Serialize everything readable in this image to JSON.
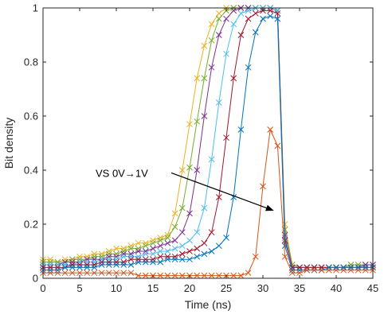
{
  "chart_data": {
    "type": "line",
    "xlabel": "Time (ns)",
    "ylabel": "Bit density",
    "xlim": [
      0,
      45
    ],
    "ylim": [
      0,
      1
    ],
    "xticks": [
      0,
      5,
      10,
      15,
      20,
      25,
      30,
      35,
      40,
      45
    ],
    "yticks": [
      0,
      0.2,
      0.4,
      0.6,
      0.8,
      1
    ],
    "xtick_labels": [
      "0",
      "5",
      "10",
      "15",
      "20",
      "25",
      "30",
      "35",
      "40",
      "45"
    ],
    "ytick_labels": [
      "0",
      "0.2",
      "0.4",
      "0.6",
      "0.8",
      "1"
    ],
    "grid": false,
    "box": true,
    "marker": "x",
    "annotation": {
      "text": "VS 0V→1V",
      "arrow_from": [
        17.5,
        0.39
      ],
      "arrow_to": [
        31.5,
        0.25
      ]
    },
    "colors": [
      "#EDB120",
      "#77AC30",
      "#7E2F8E",
      "#4DBEEE",
      "#A2142F",
      "#0072BD",
      "#D95319"
    ],
    "x": [
      0,
      1,
      2,
      3,
      4,
      5,
      6,
      7,
      8,
      9,
      10,
      11,
      12,
      13,
      14,
      15,
      16,
      17,
      18,
      19,
      20,
      21,
      22,
      23,
      24,
      25,
      26,
      27,
      28,
      29,
      30,
      31,
      32,
      33,
      34,
      35,
      36,
      37,
      38,
      39,
      40,
      41,
      42,
      43,
      44,
      45
    ],
    "series": [
      {
        "values": [
          0.07,
          0.07,
          0.06,
          0.07,
          0.07,
          0.08,
          0.08,
          0.09,
          0.09,
          0.1,
          0.11,
          0.11,
          0.12,
          0.13,
          0.13,
          0.14,
          0.15,
          0.16,
          0.24,
          0.4,
          0.57,
          0.74,
          0.86,
          0.94,
          0.98,
          1.0,
          1.0,
          1.0,
          1.0,
          1.0,
          1.0,
          1.0,
          0.99,
          0.2,
          0.05,
          0.04,
          0.04,
          0.04,
          0.04,
          0.04,
          0.04,
          0.04,
          0.05,
          0.05,
          0.05,
          0.05
        ]
      },
      {
        "values": [
          0.06,
          0.06,
          0.06,
          0.06,
          0.07,
          0.07,
          0.07,
          0.08,
          0.08,
          0.09,
          0.09,
          0.1,
          0.11,
          0.11,
          0.12,
          0.13,
          0.14,
          0.15,
          0.19,
          0.26,
          0.41,
          0.58,
          0.74,
          0.88,
          0.96,
          0.99,
          1.0,
          1.0,
          1.0,
          1.0,
          1.0,
          1.0,
          0.99,
          0.18,
          0.05,
          0.04,
          0.04,
          0.04,
          0.04,
          0.04,
          0.04,
          0.04,
          0.05,
          0.05,
          0.05,
          0.05
        ]
      },
      {
        "values": [
          0.05,
          0.05,
          0.05,
          0.06,
          0.06,
          0.06,
          0.07,
          0.07,
          0.07,
          0.08,
          0.08,
          0.09,
          0.09,
          0.1,
          0.1,
          0.11,
          0.12,
          0.13,
          0.14,
          0.17,
          0.24,
          0.4,
          0.6,
          0.78,
          0.9,
          0.96,
          0.99,
          1.0,
          1.0,
          1.0,
          1.0,
          1.0,
          0.99,
          0.16,
          0.04,
          0.04,
          0.04,
          0.04,
          0.04,
          0.04,
          0.04,
          0.04,
          0.04,
          0.04,
          0.05,
          0.05
        ]
      },
      {
        "values": [
          0.05,
          0.05,
          0.05,
          0.05,
          0.05,
          0.06,
          0.06,
          0.06,
          0.07,
          0.07,
          0.07,
          0.08,
          0.08,
          0.08,
          0.09,
          0.09,
          0.1,
          0.1,
          0.11,
          0.12,
          0.14,
          0.17,
          0.26,
          0.44,
          0.65,
          0.83,
          0.94,
          0.98,
          0.99,
          1.0,
          1.0,
          1.0,
          0.99,
          0.15,
          0.04,
          0.04,
          0.04,
          0.04,
          0.04,
          0.04,
          0.04,
          0.04,
          0.04,
          0.04,
          0.04,
          0.04
        ]
      },
      {
        "values": [
          0.04,
          0.04,
          0.04,
          0.04,
          0.05,
          0.05,
          0.05,
          0.05,
          0.06,
          0.06,
          0.06,
          0.06,
          0.07,
          0.07,
          0.07,
          0.07,
          0.08,
          0.08,
          0.08,
          0.09,
          0.1,
          0.11,
          0.13,
          0.17,
          0.3,
          0.52,
          0.74,
          0.9,
          0.96,
          0.98,
          0.99,
          0.99,
          0.98,
          0.14,
          0.04,
          0.04,
          0.04,
          0.04,
          0.04,
          0.04,
          0.04,
          0.04,
          0.04,
          0.04,
          0.04,
          0.04
        ]
      },
      {
        "values": [
          0.03,
          0.03,
          0.03,
          0.04,
          0.04,
          0.04,
          0.04,
          0.04,
          0.05,
          0.05,
          0.05,
          0.05,
          0.05,
          0.06,
          0.06,
          0.06,
          0.06,
          0.07,
          0.07,
          0.07,
          0.07,
          0.08,
          0.09,
          0.1,
          0.12,
          0.15,
          0.3,
          0.55,
          0.78,
          0.91,
          0.96,
          0.97,
          0.96,
          0.12,
          0.03,
          0.03,
          0.03,
          0.03,
          0.03,
          0.04,
          0.04,
          0.04,
          0.04,
          0.04,
          0.04,
          0.04
        ]
      },
      {
        "values": [
          0.02,
          0.02,
          0.02,
          0.02,
          0.02,
          0.02,
          0.02,
          0.02,
          0.02,
          0.02,
          0.02,
          0.02,
          0.02,
          0.01,
          0.01,
          0.01,
          0.01,
          0.01,
          0.01,
          0.01,
          0.01,
          0.01,
          0.01,
          0.01,
          0.01,
          0.01,
          0.01,
          0.01,
          0.02,
          0.08,
          0.34,
          0.55,
          0.49,
          0.08,
          0.02,
          0.02,
          0.03,
          0.03,
          0.03,
          0.03,
          0.03,
          0.03,
          0.03,
          0.03,
          0.03,
          0.03
        ]
      }
    ]
  }
}
